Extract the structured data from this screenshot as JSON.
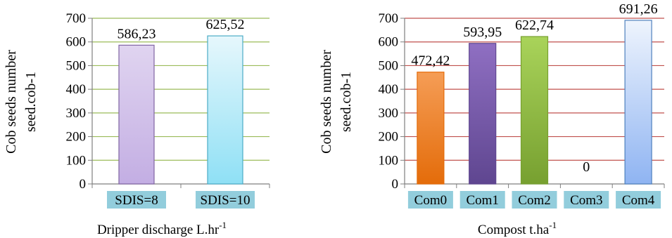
{
  "chart_data": [
    {
      "type": "bar",
      "categories": [
        "SDIS=8",
        "SDIS=10"
      ],
      "values": [
        586.23,
        625.52
      ],
      "data_labels": [
        "586,23",
        "625,52"
      ],
      "ylabel_lines": [
        "Cob seeds number",
        "seed.cob-1"
      ],
      "xlabel": {
        "text": "Dripper discharge L.hr",
        "sup": "-1"
      },
      "ylim": [
        0,
        700
      ],
      "yticks": [
        0,
        100,
        200,
        300,
        400,
        500,
        600,
        700
      ],
      "grid": true,
      "grid_color": "#9bbb59",
      "category_label_bg": "#92cddc",
      "bar_colors": [
        {
          "top": "#e0d4f0",
          "bottom": "#c3aee3",
          "stroke": "#8064a2"
        },
        {
          "top": "#e6f7fc",
          "bottom": "#8fe0f5",
          "stroke": "#4bacc6"
        }
      ]
    },
    {
      "type": "bar",
      "categories": [
        "Com0",
        "Com1",
        "Com2",
        "Com3",
        "Com4"
      ],
      "values": [
        472.42,
        593.95,
        622.74,
        0,
        691.26
      ],
      "data_labels": [
        "472,42",
        "593,95",
        "622,74",
        "0",
        "691,26"
      ],
      "ylabel_lines": [
        "Cob seeds number",
        "seed.cob-1"
      ],
      "xlabel": {
        "text": "Compost t.ha",
        "sup": "-1"
      },
      "ylim": [
        0,
        700
      ],
      "yticks": [
        0,
        100,
        200,
        300,
        400,
        500,
        600,
        700
      ],
      "grid": true,
      "grid_color": "#c0504d",
      "category_label_bg": "#92cddc",
      "bar_colors": [
        {
          "top": "#f59d56",
          "bottom": "#e46c0a",
          "stroke": "#e46c0a"
        },
        {
          "top": "#8f6fc2",
          "bottom": "#5f4690",
          "stroke": "#5f4690"
        },
        {
          "top": "#a9d35a",
          "bottom": "#77a030",
          "stroke": "#77a030"
        },
        {
          "top": "#dddddd",
          "bottom": "#bbbbbb",
          "stroke": "#999999"
        },
        {
          "top": "#eef4fd",
          "bottom": "#8fb4f2",
          "stroke": "#4f81bd"
        }
      ]
    }
  ]
}
